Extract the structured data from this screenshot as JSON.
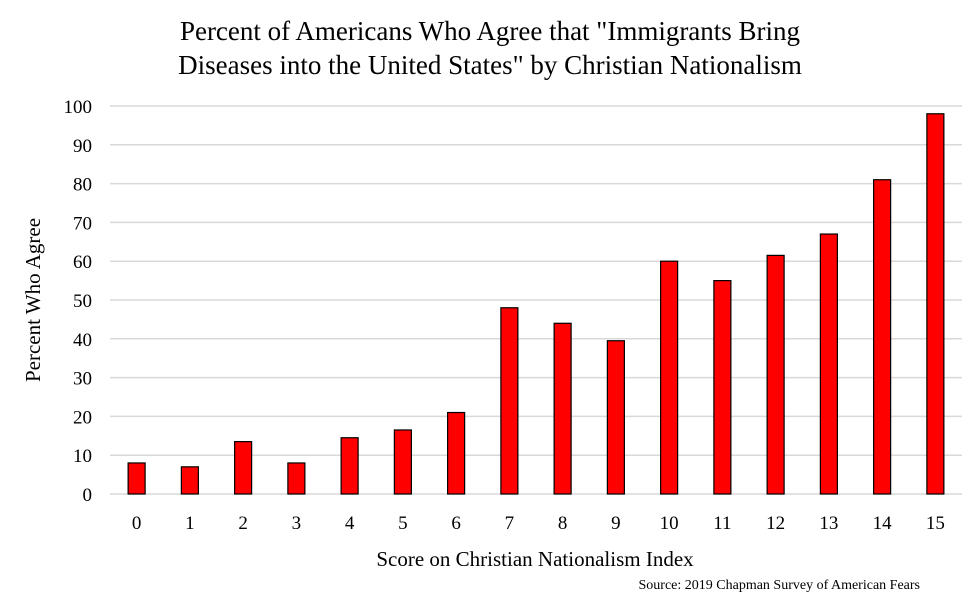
{
  "chart_data": {
    "type": "bar",
    "title_lines": [
      "Percent of Americans Who Agree that \"Immigrants Bring",
      "Diseases into the United States\" by Christian Nationalism"
    ],
    "xlabel": "Score on Christian Nationalism Index",
    "ylabel": "Percent Who Agree",
    "source": "Source: 2019 Chapman Survey of American Fears",
    "categories": [
      "0",
      "1",
      "2",
      "3",
      "4",
      "5",
      "6",
      "7",
      "8",
      "9",
      "10",
      "11",
      "12",
      "13",
      "14",
      "15"
    ],
    "values": [
      8,
      7,
      13.5,
      8,
      14.5,
      16.5,
      21,
      48,
      44,
      39.5,
      60,
      55,
      61.5,
      67,
      81,
      98
    ],
    "ylim": [
      0,
      100
    ],
    "yticks": [
      0,
      10,
      20,
      30,
      40,
      50,
      60,
      70,
      80,
      90,
      100
    ],
    "grid": true,
    "legend": "none",
    "bar_color": "#ff0000",
    "bar_edge_color": "#000000",
    "grid_color": "#d9d9d9"
  }
}
